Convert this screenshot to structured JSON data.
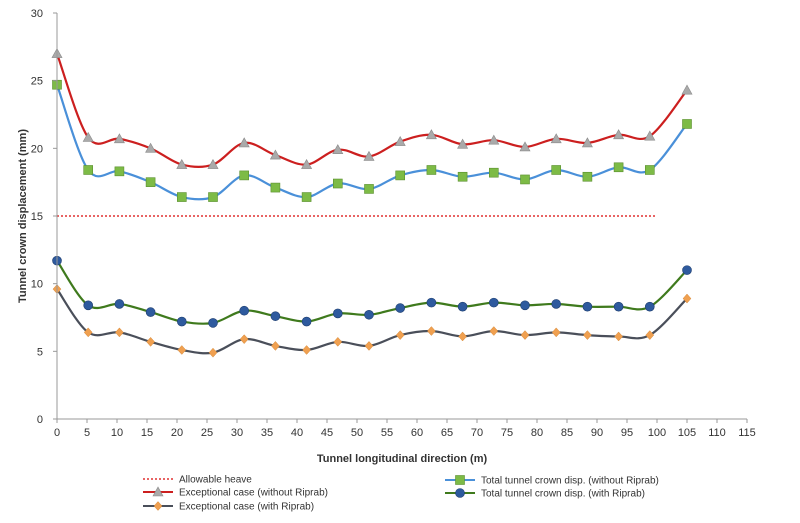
{
  "chart_data": {
    "type": "line",
    "title": "",
    "xlabel": "Tunnel longitudinal direction (m)",
    "ylabel": "Tunnel crown displacement (mm)",
    "xlim": [
      0,
      115
    ],
    "ylim": [
      0,
      30
    ],
    "xticks": [
      "0",
      "5",
      "10",
      "15",
      "20",
      "25",
      "30",
      "35",
      "40",
      "45",
      "50",
      "55",
      "60",
      "65",
      "70",
      "75",
      "80",
      "85",
      "90",
      "95",
      "100",
      "105",
      "110",
      "115"
    ],
    "yticks": [
      "0",
      "5",
      "10",
      "15",
      "20",
      "25",
      "30"
    ],
    "grid": false,
    "legend_position": "bottom",
    "x": [
      0,
      5.2,
      10.4,
      15.6,
      20.8,
      26,
      31.2,
      36.4,
      41.6,
      46.8,
      52,
      57.2,
      62.4,
      67.6,
      72.8,
      78,
      83.2,
      88.4,
      93.6,
      98.8,
      105
    ],
    "reference_lines": [
      {
        "name": "Allowable heave",
        "y": 15,
        "color": "#e03030",
        "style": "dotted"
      }
    ],
    "series": [
      {
        "name": "Exceptional case (without Riprab)",
        "line_color": "#cc1f1f",
        "marker": "triangle",
        "marker_color": "#aaaaaa",
        "values": [
          27.0,
          20.8,
          20.7,
          20.0,
          18.8,
          18.8,
          20.4,
          19.5,
          18.8,
          19.9,
          19.4,
          20.5,
          21.0,
          20.3,
          20.6,
          20.1,
          20.7,
          20.4,
          21.0,
          20.9,
          24.3
        ]
      },
      {
        "name": "Total tunnel crown disp. (without Riprab)",
        "line_color": "#4a90d9",
        "marker": "square",
        "marker_color": "#7dbb46",
        "values": [
          24.7,
          18.4,
          18.3,
          17.5,
          16.4,
          16.4,
          18.0,
          17.1,
          16.4,
          17.4,
          17.0,
          18.0,
          18.4,
          17.9,
          18.2,
          17.7,
          18.4,
          17.9,
          18.6,
          18.4,
          21.8
        ]
      },
      {
        "name": "Total tunnel crown disp. (with Riprab)",
        "line_color": "#3f7a1d",
        "marker": "circle",
        "marker_color": "#2e5a9e",
        "values": [
          11.7,
          8.4,
          8.5,
          7.9,
          7.2,
          7.1,
          8.0,
          7.6,
          7.2,
          7.8,
          7.7,
          8.2,
          8.6,
          8.3,
          8.6,
          8.4,
          8.5,
          8.3,
          8.3,
          8.3,
          11.0
        ]
      },
      {
        "name": "Exceptional case (with Riprab)",
        "line_color": "#4a4f5a",
        "marker": "diamond",
        "marker_color": "#f0a050",
        "values": [
          9.6,
          6.4,
          6.4,
          5.7,
          5.1,
          4.9,
          5.9,
          5.4,
          5.1,
          5.7,
          5.4,
          6.2,
          6.5,
          6.1,
          6.5,
          6.2,
          6.4,
          6.2,
          6.1,
          6.2,
          8.9
        ]
      }
    ]
  }
}
